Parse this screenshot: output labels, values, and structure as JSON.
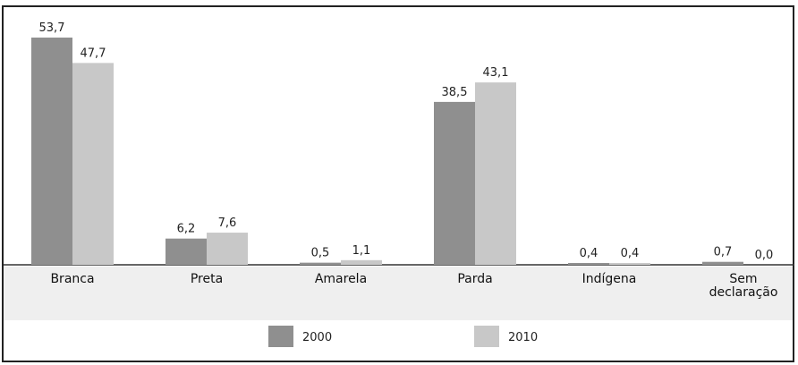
{
  "chart_data": {
    "type": "bar",
    "categories": [
      "Branca",
      "Preta",
      "Amarela",
      "Parda",
      "Indígena",
      "Sem\ndeclaração"
    ],
    "series": [
      {
        "name": "2000",
        "values": [
          53.7,
          6.2,
          0.5,
          38.5,
          0.4,
          0.7
        ],
        "labels": [
          "53,7",
          "6,2",
          "0,5",
          "38,5",
          "0,4",
          "0,7"
        ]
      },
      {
        "name": "2010",
        "values": [
          47.7,
          7.6,
          1.1,
          43.1,
          0.4,
          0.0
        ],
        "labels": [
          "47,7",
          "7,6",
          "1,1",
          "43,1",
          "0,4",
          "0,0"
        ]
      }
    ],
    "ylim": [
      0,
      56
    ],
    "grid": false,
    "legend_position": "bottom",
    "colors": {
      "2000": "#8f8f8f",
      "2010": "#c8c8c8"
    }
  }
}
